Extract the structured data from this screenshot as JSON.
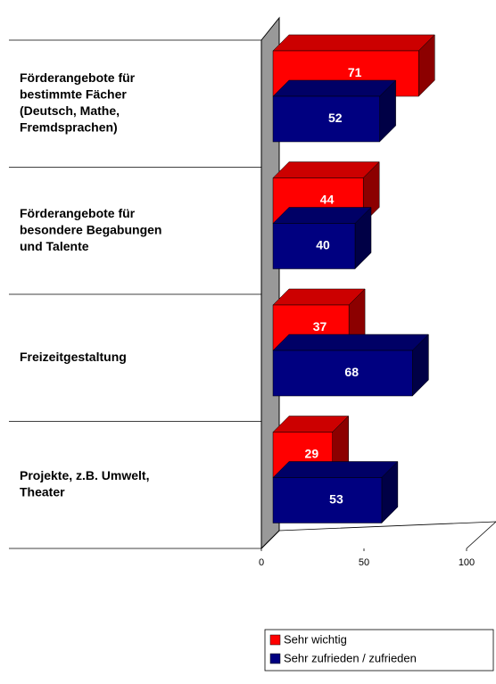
{
  "chart_data": {
    "type": "bar3d_horizontal",
    "categories": [
      [
        "Förderangebote für",
        "bestimmte Fächer",
        "(Deutsch, Mathe,",
        "Fremdsprachen)"
      ],
      [
        "Förderangebote für",
        "besondere Begabungen",
        "und Talente"
      ],
      [
        "Freizeitgestaltung"
      ],
      [
        "Projekte, z.B. Umwelt,",
        "Theater"
      ]
    ],
    "series": [
      {
        "name": "Sehr wichtig",
        "color": "#ff0000",
        "values": [
          71,
          44,
          37,
          29
        ]
      },
      {
        "name": "Sehr zufrieden / zufrieden",
        "color": "#000080",
        "values": [
          52,
          40,
          68,
          53
        ]
      }
    ],
    "xlim": [
      0,
      100
    ],
    "xticks": [
      0,
      50,
      100
    ],
    "legend": "bottom-right"
  }
}
